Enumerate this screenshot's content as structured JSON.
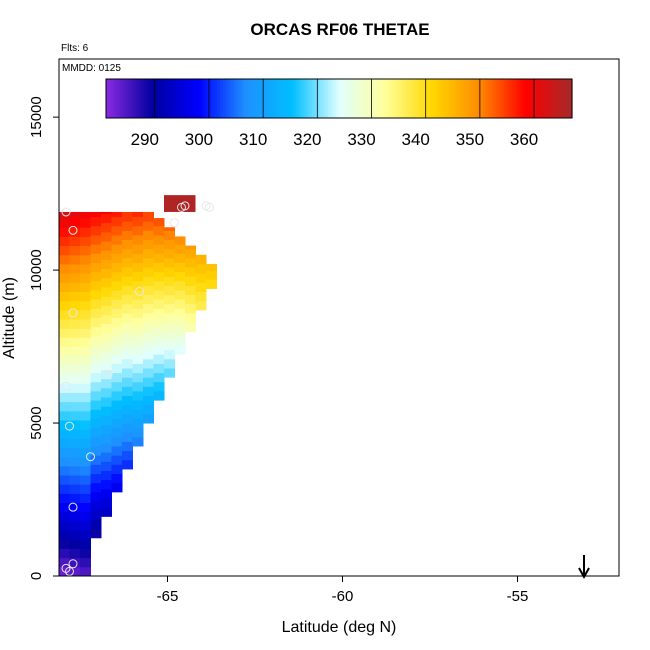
{
  "chart_data": {
    "type": "heatmap",
    "title": "ORCAS RF06 THETAE",
    "xlabel": "Latitude (deg N)",
    "ylabel": "Altitude (m)",
    "xlim": [
      -68.1,
      -52.1
    ],
    "ylim": [
      0,
      16900
    ],
    "x_ticks": [
      -65,
      -60,
      -55
    ],
    "y_ticks": [
      0,
      5000,
      10000,
      15000
    ],
    "annotations": {
      "flights": "Flts: 6",
      "date": "MMDD: 0125"
    },
    "colorbar": {
      "range": [
        281,
        367
      ],
      "ticks": [
        290,
        300,
        310,
        320,
        330,
        340,
        350,
        360
      ],
      "colors": [
        "#8a2be2",
        "#0000a0",
        "#0000ff",
        "#1e90ff",
        "#00bfff",
        "#e0ffff",
        "#ffff99",
        "#ffd700",
        "#ff8c00",
        "#ff0000",
        "#a52a2a"
      ]
    },
    "grid": false,
    "marker": {
      "symbol": "down-arrow",
      "x": -53.1
    },
    "columns": [
      {
        "x": -68.1,
        "z0": 0,
        "z1": 11900,
        "v0": 282,
        "v1": 362
      },
      {
        "x": -67.8,
        "z0": 0,
        "z1": 11900,
        "v0": 283,
        "v1": 361
      },
      {
        "x": -67.5,
        "z0": 0,
        "z1": 11900,
        "v0": 284,
        "v1": 360
      },
      {
        "x": -67.2,
        "z0": 1250,
        "z1": 11900,
        "v0": 288,
        "v1": 359
      },
      {
        "x": -66.9,
        "z0": 1950,
        "z1": 11900,
        "v0": 292,
        "v1": 358
      },
      {
        "x": -66.6,
        "z0": 2750,
        "z1": 11900,
        "v0": 296,
        "v1": 357
      },
      {
        "x": -66.3,
        "z0": 3500,
        "z1": 11900,
        "v0": 300,
        "v1": 356
      },
      {
        "x": -66.0,
        "z0": 4250,
        "z1": 11900,
        "v0": 305,
        "v1": 356
      },
      {
        "x": -65.7,
        "z0": 5000,
        "z1": 11900,
        "v0": 309,
        "v1": 355
      },
      {
        "x": -65.4,
        "z0": 5750,
        "z1": 11700,
        "v0": 313,
        "v1": 354
      },
      {
        "x": -65.1,
        "z0": 6500,
        "z1": 11400,
        "v0": 318,
        "v1": 352
      },
      {
        "x": -64.8,
        "z0": 7250,
        "z1": 11100,
        "v0": 323,
        "v1": 350
      },
      {
        "x": -64.5,
        "z0": 8000,
        "z1": 10800,
        "v0": 330,
        "v1": 348
      },
      {
        "x": -64.2,
        "z0": 8700,
        "z1": 10500,
        "v0": 336,
        "v1": 346
      },
      {
        "x": -63.9,
        "z0": 9400,
        "z1": 10200,
        "v0": 340,
        "v1": 344
      }
    ],
    "top_segment": {
      "x0": -65.1,
      "x1": -64.2,
      "z0": 11900,
      "z1": 12450,
      "value": 366
    },
    "points": [
      {
        "x": -67.9,
        "y": 11900
      },
      {
        "x": -67.7,
        "y": 11300
      },
      {
        "x": -64.8,
        "y": 11550
      },
      {
        "x": -64.6,
        "y": 12050
      },
      {
        "x": -64.5,
        "y": 12100
      },
      {
        "x": -63.9,
        "y": 12100
      },
      {
        "x": -63.8,
        "y": 12050
      },
      {
        "x": -65.8,
        "y": 9300
      },
      {
        "x": -67.7,
        "y": 8600
      },
      {
        "x": -66.7,
        "y": 6600
      },
      {
        "x": -67.9,
        "y": 6200
      },
      {
        "x": -67.8,
        "y": 4900
      },
      {
        "x": -67.2,
        "y": 3900
      },
      {
        "x": -67.7,
        "y": 2250
      },
      {
        "x": -67.7,
        "y": 400
      },
      {
        "x": -67.9,
        "y": 250
      },
      {
        "x": -67.8,
        "y": 150
      }
    ]
  }
}
